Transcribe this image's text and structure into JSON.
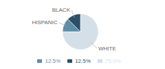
{
  "chart_data": {
    "type": "pie",
    "categories": [
      "WHITE",
      "HISPANIC",
      "BLACK"
    ],
    "values": [
      75.0,
      12.5,
      12.5
    ],
    "value_labels": [
      "75.0%",
      "12.5%",
      "12.5%"
    ],
    "colors": [
      "#d4dfe8",
      "#5e8da8",
      "#2b5168"
    ],
    "legend": "bottom"
  }
}
